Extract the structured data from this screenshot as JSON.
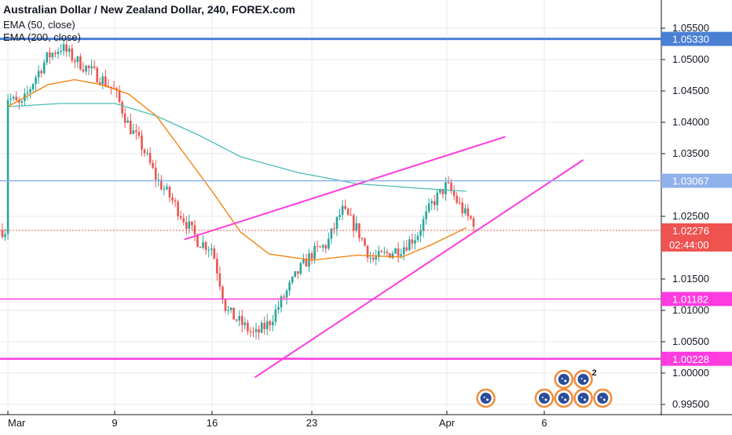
{
  "chart_data": {
    "type": "candlestick",
    "title": "Australian Dollar / New Zealand Dollar, 240, FOREX.com",
    "indicators": [
      {
        "name": "EMA (50, close)",
        "color": "#f57c00"
      },
      {
        "name": "EMA (200, close)",
        "color": "#4dbdb9"
      }
    ],
    "x_tick_labels": [
      "Mar",
      "9",
      "16",
      "23",
      "Apr",
      "6"
    ],
    "y_tick_labels": [
      "1.05500",
      "1.05000",
      "1.04500",
      "1.04000",
      "1.03500",
      "1.02500",
      "1.01500",
      "1.01000",
      "1.00500",
      "1.00000",
      "0.99500"
    ],
    "ylim": [
      0.9945,
      1.0595
    ],
    "x_ticks": [
      {
        "label": "Mar",
        "date": "2020-03-01"
      },
      {
        "label": "9",
        "date": "2020-03-09"
      },
      {
        "label": "16",
        "date": "2020-03-16"
      },
      {
        "label": "23",
        "date": "2020-03-23"
      },
      {
        "label": "Apr",
        "date": "2020-04-01"
      },
      {
        "label": "6",
        "date": "2020-04-06"
      }
    ],
    "close_path": [
      {
        "date": "2020-03-01",
        "close": 1.044
      },
      {
        "date": "2020-03-02",
        "close": 1.0425
      },
      {
        "date": "2020-03-03",
        "close": 1.047
      },
      {
        "date": "2020-03-04",
        "close": 1.0505
      },
      {
        "date": "2020-03-05",
        "close": 1.052
      },
      {
        "date": "2020-03-06",
        "close": 1.05
      },
      {
        "date": "2020-03-08",
        "close": 1.047
      },
      {
        "date": "2020-03-09",
        "close": 1.045
      },
      {
        "date": "2020-03-10",
        "close": 1.0395
      },
      {
        "date": "2020-03-11",
        "close": 1.036
      },
      {
        "date": "2020-03-12",
        "close": 1.031
      },
      {
        "date": "2020-03-13",
        "close": 1.028
      },
      {
        "date": "2020-03-15",
        "close": 1.021
      },
      {
        "date": "2020-03-16",
        "close": 1.02
      },
      {
        "date": "2020-03-17",
        "close": 1.01
      },
      {
        "date": "2020-03-18",
        "close": 1.008
      },
      {
        "date": "2020-03-19",
        "close": 1.006
      },
      {
        "date": "2020-03-20",
        "close": 1.008
      },
      {
        "date": "2020-03-22",
        "close": 1.016
      },
      {
        "date": "2020-03-23",
        "close": 1.019
      },
      {
        "date": "2020-03-24",
        "close": 1.0205
      },
      {
        "date": "2020-03-25",
        "close": 1.026
      },
      {
        "date": "2020-03-26",
        "close": 1.023
      },
      {
        "date": "2020-03-27",
        "close": 1.018
      },
      {
        "date": "2020-03-29",
        "close": 1.02
      },
      {
        "date": "2020-03-30",
        "close": 1.022
      },
      {
        "date": "2020-03-31",
        "close": 1.027
      },
      {
        "date": "2020-04-01",
        "close": 1.03
      },
      {
        "date": "2020-04-02",
        "close": 1.025
      },
      {
        "date": "2020-04-03",
        "close": 1.0228
      }
    ],
    "ema50": [
      {
        "date": "2020-03-01",
        "value": 1.0425
      },
      {
        "date": "2020-03-04",
        "value": 1.046
      },
      {
        "date": "2020-03-06",
        "value": 1.0468
      },
      {
        "date": "2020-03-08",
        "value": 1.046
      },
      {
        "date": "2020-03-10",
        "value": 1.0445
      },
      {
        "date": "2020-03-12",
        "value": 1.041
      },
      {
        "date": "2020-03-14",
        "value": 1.035
      },
      {
        "date": "2020-03-16",
        "value": 1.029
      },
      {
        "date": "2020-03-18",
        "value": 1.0225
      },
      {
        "date": "2020-03-20",
        "value": 1.019
      },
      {
        "date": "2020-03-23",
        "value": 1.018
      },
      {
        "date": "2020-03-26",
        "value": 1.0188
      },
      {
        "date": "2020-03-29",
        "value": 1.0185
      },
      {
        "date": "2020-03-31",
        "value": 1.0205
      },
      {
        "date": "2020-04-02",
        "value": 1.0232
      }
    ],
    "ema200": [
      {
        "date": "2020-03-01",
        "value": 1.0425
      },
      {
        "date": "2020-03-05",
        "value": 1.043
      },
      {
        "date": "2020-03-09",
        "value": 1.043
      },
      {
        "date": "2020-03-12",
        "value": 1.041
      },
      {
        "date": "2020-03-15",
        "value": 1.038
      },
      {
        "date": "2020-03-18",
        "value": 1.0345
      },
      {
        "date": "2020-03-22",
        "value": 1.032
      },
      {
        "date": "2020-03-26",
        "value": 1.0302
      },
      {
        "date": "2020-03-30",
        "value": 1.0295
      },
      {
        "date": "2020-04-02",
        "value": 1.029
      }
    ],
    "horizontal_lines": [
      {
        "value": 1.0533,
        "label": "1.05330",
        "color": "#4a7fd4",
        "width": 3
      },
      {
        "value": 1.03067,
        "label": "1.03067",
        "color": "#8fb1ec",
        "width": 1.5
      },
      {
        "value": 1.01182,
        "label": "1.01182",
        "color": "#ff3be0",
        "width": 1.5
      },
      {
        "value": 1.00228,
        "label": "1.00228",
        "color": "#ff3be0",
        "width": 2.5
      }
    ],
    "trend_lines": [
      {
        "from": {
          "date": "2020-03-14",
          "value": 1.0213
        },
        "to": {
          "date": "2020-04-04",
          "value": 1.0377
        },
        "color": "#ff3be0"
      },
      {
        "from": {
          "date": "2020-03-19",
          "value": 0.9993
        },
        "to": {
          "date": "2020-04-08",
          "value": 1.034
        },
        "color": "#ff3be0"
      }
    ],
    "last_price": {
      "value": 1.02276,
      "label": "1.02276",
      "countdown": "02:44:00",
      "color": "#ef5350"
    },
    "colors": {
      "up": "#26a69a",
      "down": "#ef5350",
      "axis_text": "#131722",
      "grid": "#e8eaee"
    },
    "event_icons": [
      {
        "date": "2020-04-03",
        "type": "flag-event-icon"
      },
      {
        "date": "2020-04-06",
        "type": "flag-event-icon"
      },
      {
        "date": "2020-04-07",
        "type": "flag-event-icon"
      },
      {
        "date": "2020-04-08",
        "type": "flag-event-icon"
      },
      {
        "date": "2020-04-09",
        "type": "flag-event-icon"
      },
      {
        "date": "2020-04-07",
        "type": "flag-event-icon",
        "row": 2
      },
      {
        "date": "2020-04-08",
        "type": "flag-event-icon",
        "row": 2,
        "badge": "2"
      }
    ],
    "grid": true
  }
}
